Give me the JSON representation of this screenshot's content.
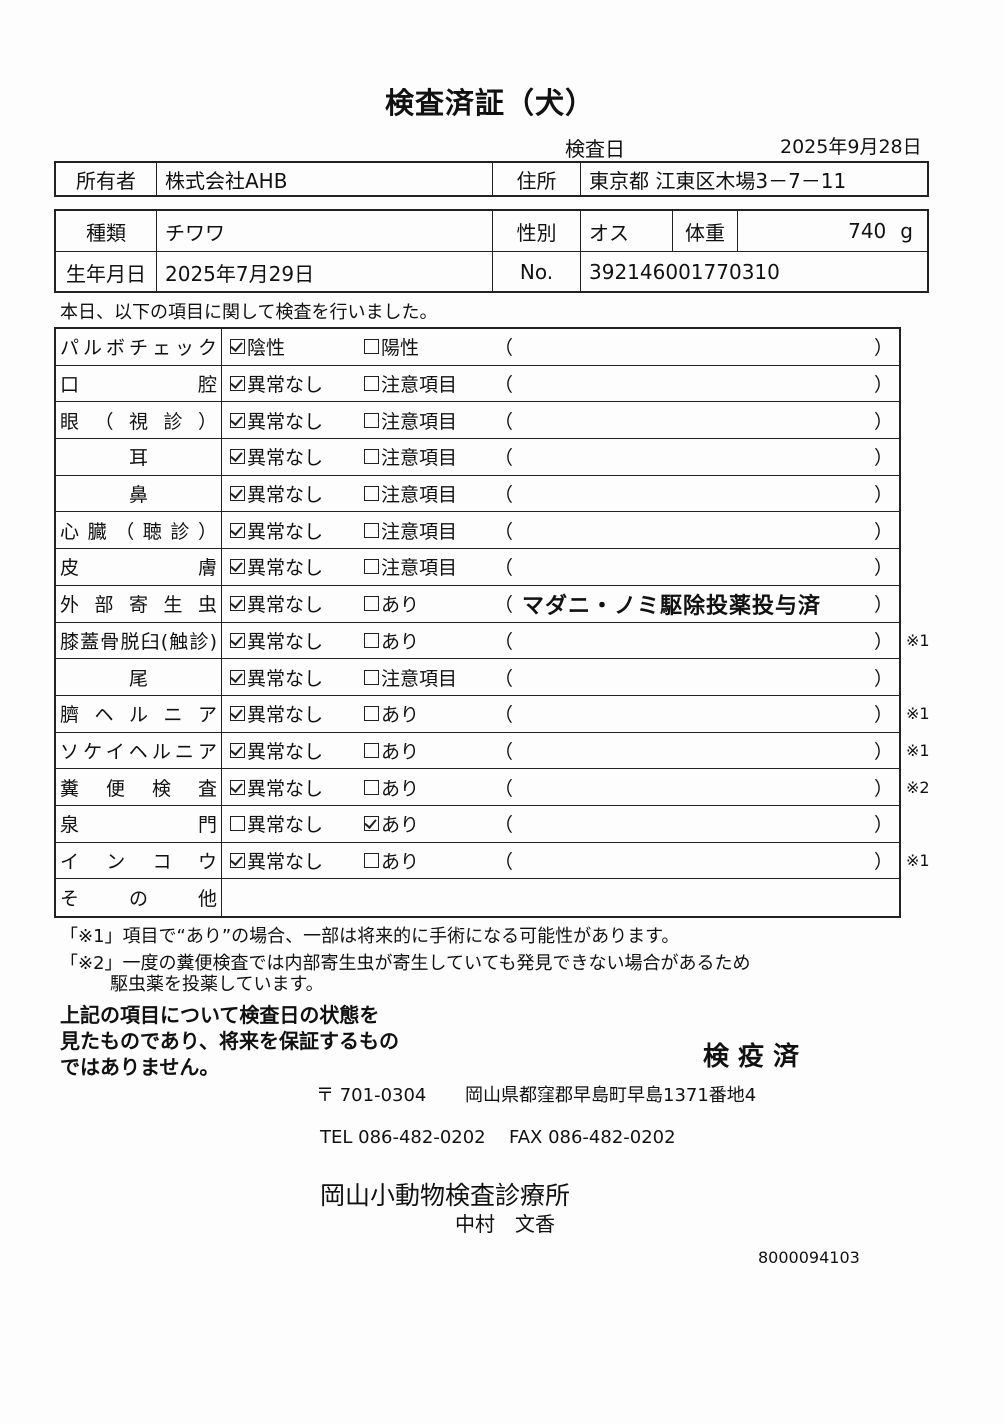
{
  "title": "検査済証（犬）",
  "exam_date": {
    "label": "検査日",
    "value": "2025年9月28日"
  },
  "owner": {
    "label": "所有者",
    "value": "株式会社AHB",
    "address_label": "住所",
    "address": "東京都 江東区木場3－7－11"
  },
  "animal": {
    "breed_label": "種類",
    "breed": "チワワ",
    "sex_label": "性別",
    "sex": "オス",
    "weight_label": "体重",
    "weight": "740",
    "weight_unit": "g",
    "birth_label": "生年月日",
    "birth": "2025年7月29日",
    "no_label": "No.",
    "no": "392146001770310"
  },
  "intro": "本日、以下の項目に関して検査を行いました。",
  "items": [
    {
      "label": "パルボチェック",
      "opt1": "陰性",
      "opt2": "陽性",
      "checked": 1,
      "remark": "",
      "note": ""
    },
    {
      "label": "口腔",
      "opt1": "異常なし",
      "opt2": "注意項目",
      "checked": 1,
      "remark": "",
      "note": ""
    },
    {
      "label": "眼（視診）",
      "opt1": "異常なし",
      "opt2": "注意項目",
      "checked": 1,
      "remark": "",
      "note": ""
    },
    {
      "label": "耳",
      "opt1": "異常なし",
      "opt2": "注意項目",
      "checked": 1,
      "remark": "",
      "note": "",
      "center": true
    },
    {
      "label": "鼻",
      "opt1": "異常なし",
      "opt2": "注意項目",
      "checked": 1,
      "remark": "",
      "note": "",
      "center": true
    },
    {
      "label": "心臓（聴診）",
      "opt1": "異常なし",
      "opt2": "注意項目",
      "checked": 1,
      "remark": "",
      "note": ""
    },
    {
      "label": "皮膚",
      "opt1": "異常なし",
      "opt2": "注意項目",
      "checked": 1,
      "remark": "",
      "note": ""
    },
    {
      "label": "外部寄生虫",
      "opt1": "異常なし",
      "opt2": "あり",
      "checked": 1,
      "remark": "マダニ・ノミ駆除投薬投与済",
      "note": ""
    },
    {
      "label": "膝蓋骨脱臼(触診)",
      "opt1": "異常なし",
      "opt2": "あり",
      "checked": 1,
      "remark": "",
      "note": "※1"
    },
    {
      "label": "尾",
      "opt1": "異常なし",
      "opt2": "注意項目",
      "checked": 1,
      "remark": "",
      "note": "",
      "center": true
    },
    {
      "label": "臍ヘルニア",
      "opt1": "異常なし",
      "opt2": "あり",
      "checked": 1,
      "remark": "",
      "note": "※1"
    },
    {
      "label": "ソケイヘルニア",
      "opt1": "異常なし",
      "opt2": "あり",
      "checked": 1,
      "remark": "",
      "note": "※1"
    },
    {
      "label": "糞便検査",
      "opt1": "異常なし",
      "opt2": "あり",
      "checked": 1,
      "remark": "",
      "note": "※2"
    },
    {
      "label": "泉門",
      "opt1": "異常なし",
      "opt2": "あり",
      "checked": 2,
      "remark": "",
      "note": ""
    },
    {
      "label": "インコウ",
      "opt1": "異常なし",
      "opt2": "あり",
      "checked": 1,
      "remark": "",
      "note": "※1"
    },
    {
      "label": "その他",
      "other": true
    }
  ],
  "paren_open": "（",
  "paren_close": "）",
  "notes": {
    "n1": "「※1」項目で“あり”の場合、一部は将来的に手術になる可能性があります。",
    "n2": "「※2」一度の糞便検査では内部寄生虫が寄生していても発見できない場合があるため",
    "n2b": "駆虫薬を投薬しています。"
  },
  "disclaimer": [
    "上記の項目について検査日の状態を",
    "見たものであり、将来を保証するもの",
    "ではありません。"
  ],
  "stamp": "検 疫 済",
  "clinic": {
    "postal": "〒 701-0304",
    "address": "岡山県都窪郡早島町早島1371番地4",
    "tel": "TEL 086-482-0202",
    "fax": "FAX 086-482-0202",
    "name": "岡山小動物検査診療所",
    "person": "中村　文香"
  },
  "doc_number": "8000094103"
}
